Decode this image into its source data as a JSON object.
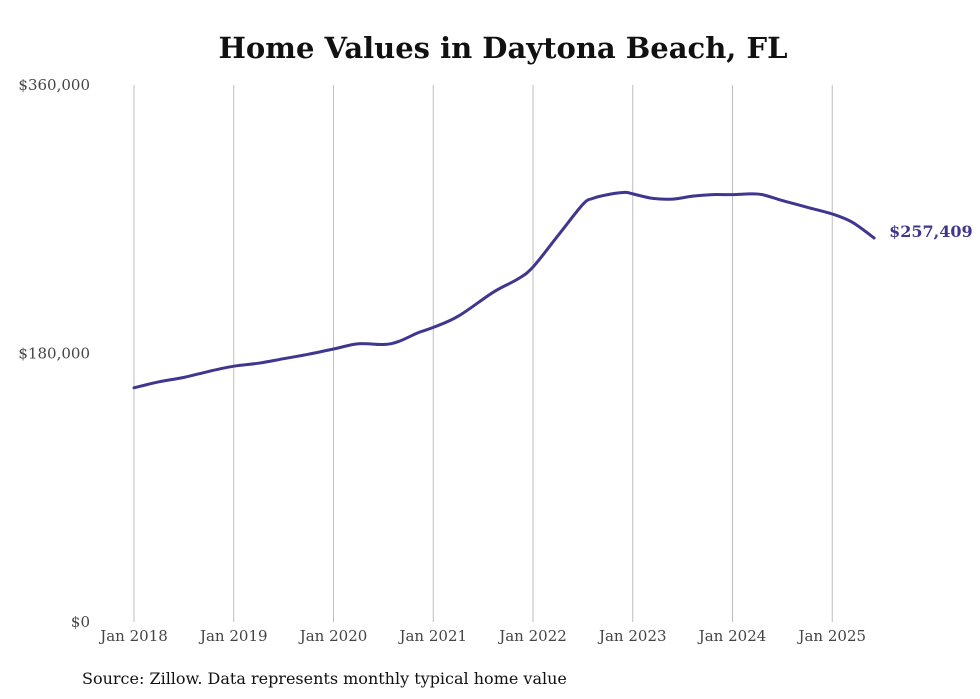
{
  "chart_data": {
    "type": "line",
    "title": "Home Values in Daytona Beach, FL",
    "xlabel": "",
    "ylabel": "",
    "ylim": [
      0,
      360000
    ],
    "yticks": [
      {
        "value": 0,
        "label": "$0"
      },
      {
        "value": 180000,
        "label": "$180,000"
      },
      {
        "value": 360000,
        "label": "$360,000"
      }
    ],
    "xticks": [
      {
        "value": 2018,
        "label": "Jan 2018"
      },
      {
        "value": 2019,
        "label": "Jan 2019"
      },
      {
        "value": 2020,
        "label": "Jan 2020"
      },
      {
        "value": 2021,
        "label": "Jan 2021"
      },
      {
        "value": 2022,
        "label": "Jan 2022"
      },
      {
        "value": 2023,
        "label": "Jan 2023"
      },
      {
        "value": 2024,
        "label": "Jan 2024"
      },
      {
        "value": 2025,
        "label": "Jan 2025"
      }
    ],
    "grid": "vertical",
    "series": [
      {
        "color": "#3f3690",
        "end_label": "$257,409",
        "x": [
          2018.0,
          2018.25,
          2018.5,
          2018.75,
          2019.0,
          2019.25,
          2019.5,
          2019.75,
          2020.0,
          2020.25,
          2020.5,
          2020.65,
          2020.85,
          2021.0,
          2021.25,
          2021.6,
          2021.85,
          2022.0,
          2022.25,
          2022.5,
          2022.6,
          2022.75,
          2022.92,
          2023.0,
          2023.2,
          2023.4,
          2023.6,
          2023.8,
          2024.0,
          2024.17,
          2024.3,
          2024.5,
          2024.75,
          2025.0,
          2025.2,
          2025.42
        ],
        "values": [
          157000,
          161000,
          164000,
          168000,
          171500,
          173500,
          176500,
          179500,
          183000,
          186500,
          186000,
          188000,
          194000,
          197500,
          205000,
          221000,
          230000,
          238000,
          259000,
          280000,
          284000,
          286500,
          288000,
          287000,
          284000,
          283500,
          285500,
          286500,
          286500,
          287000,
          286500,
          282500,
          278000,
          273500,
          268000,
          257409
        ]
      }
    ]
  },
  "footer": {
    "source": "Source: Zillow. Data represents monthly typical home value"
  }
}
